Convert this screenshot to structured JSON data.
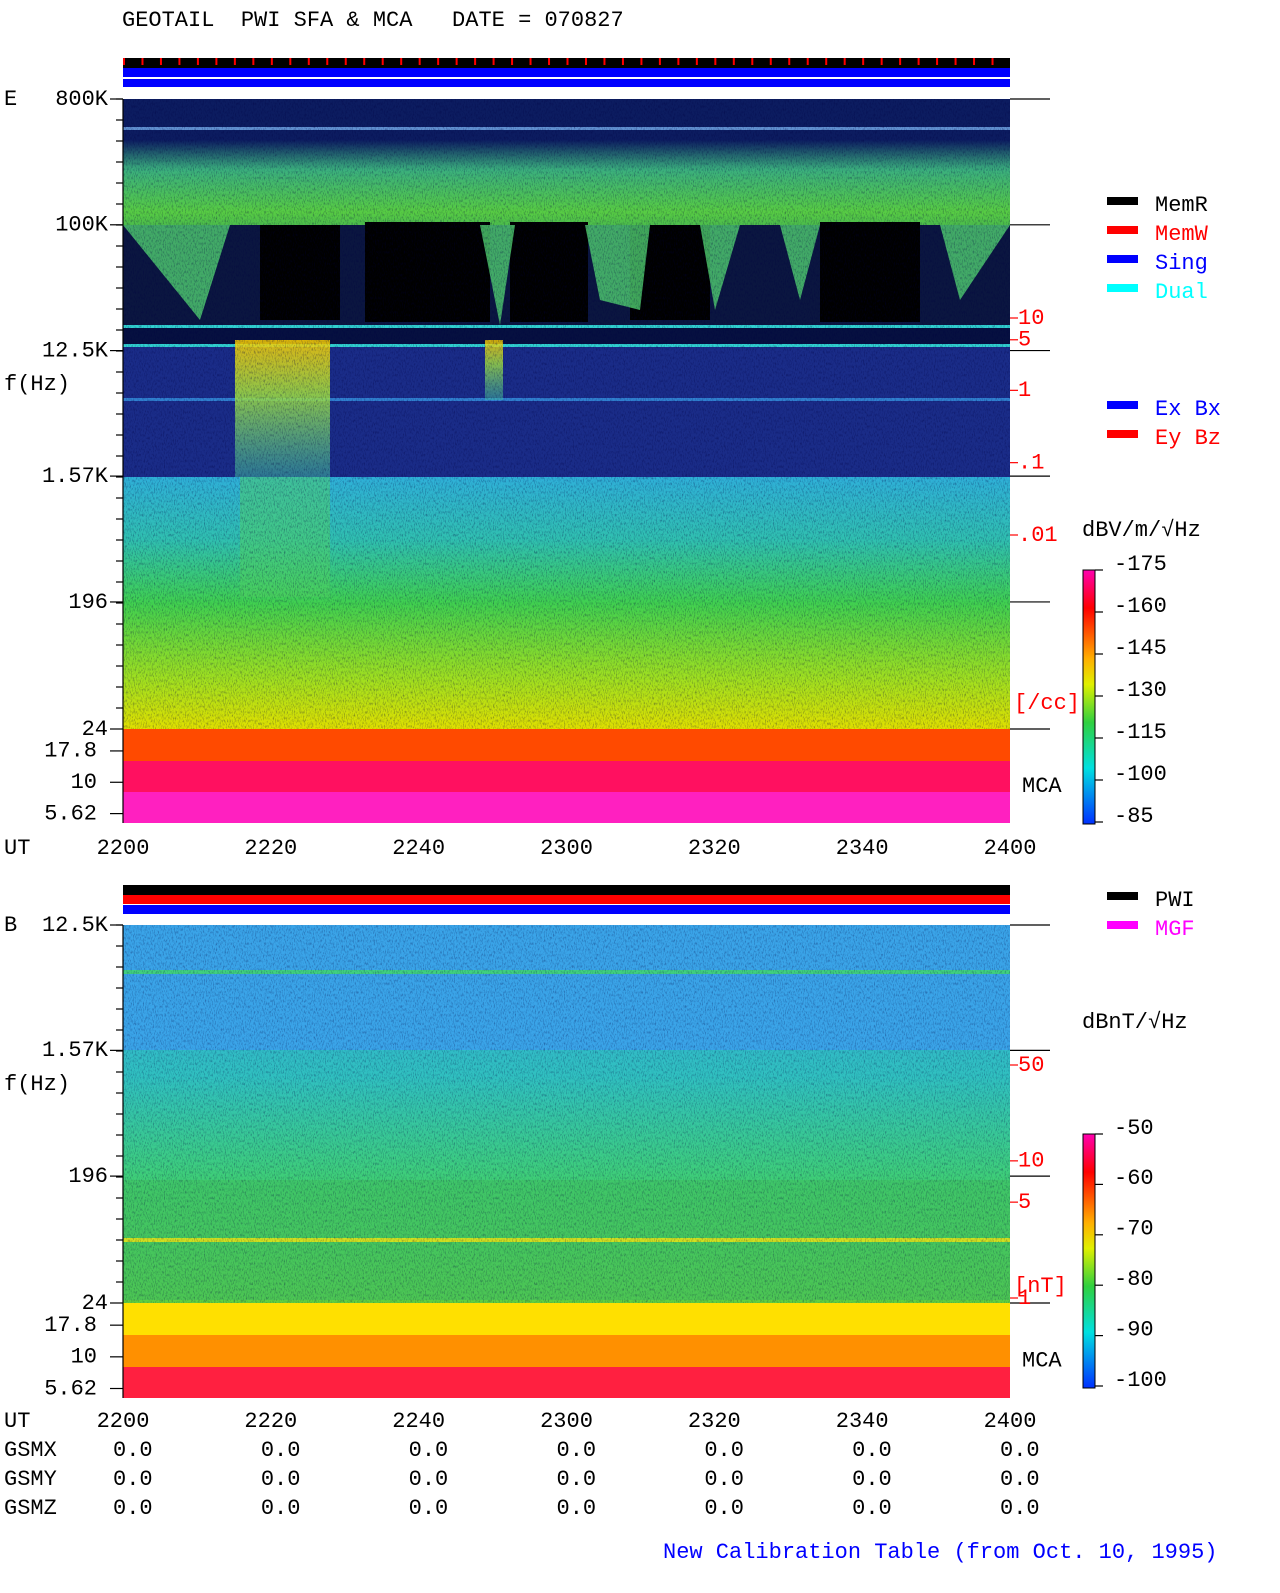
{
  "header": {
    "title": "GEOTAIL  PWI SFA & MCA   DATE = 070827"
  },
  "chart_data": [
    {
      "type": "spectrogram",
      "panel_label": "E",
      "y_label": "f(Hz)",
      "x_label": "UT",
      "log_y": true,
      "ylim": [
        24,
        800000
      ],
      "yticks": [
        {
          "value": 800000,
          "label": "800K"
        },
        {
          "value": 100000,
          "label": "100K"
        },
        {
          "value": 12500,
          "label": "12.5K"
        },
        {
          "value": 1570,
          "label": "1.57K"
        },
        196,
        24
      ],
      "mca_label": "MCA",
      "mca_ticks": [
        17.8,
        10,
        5.62
      ],
      "categories": [
        "2200",
        "2220",
        "2240",
        "2300",
        "2320",
        "2340",
        "2400"
      ],
      "colorbar": {
        "label": "dBV/m/√Hz",
        "lim": [
          -175,
          -85
        ],
        "ticks": [
          -85,
          -100,
          -115,
          -130,
          -145,
          -160,
          -175
        ]
      },
      "density_axis": {
        "label": "[/cc]",
        "log": true,
        "lim": [
          0.01,
          10
        ],
        "ticks": [
          10,
          5,
          1,
          {
            "value": 0.1,
            "label": ".1"
          },
          {
            "value": 0.01,
            "label": ".01"
          }
        ]
      },
      "status_colors": [
        "#000000",
        "#0000ff",
        "#0000ff"
      ],
      "legends": [
        {
          "series": [
            {
              "name": "MemR",
              "color": "#000000"
            },
            {
              "name": "MemW",
              "color": "#ff0000"
            },
            {
              "name": "Sing",
              "color": "#0000ff"
            },
            {
              "name": "Dual",
              "color": "#00ffff"
            }
          ]
        },
        {
          "series": [
            {
              "name": "Ex Bx",
              "color": "#0000ff"
            },
            {
              "name": "Ey Bz",
              "color": "#ff0000"
            }
          ]
        }
      ]
    },
    {
      "type": "spectrogram",
      "panel_label": "B",
      "y_label": "f(Hz)",
      "x_label": "UT",
      "log_y": true,
      "ylim": [
        24,
        12500
      ],
      "yticks": [
        {
          "value": 12500,
          "label": "12.5K"
        },
        {
          "value": 1570,
          "label": "1.57K"
        },
        196,
        24
      ],
      "mca_label": "MCA",
      "mca_ticks": [
        17.8,
        10,
        5.62
      ],
      "categories": [
        "2200",
        "2220",
        "2240",
        "2300",
        "2320",
        "2340",
        "2400"
      ],
      "colorbar": {
        "label": "dBnT/√Hz",
        "lim": [
          -100,
          -50
        ],
        "ticks": [
          -50,
          -60,
          -70,
          -80,
          -90,
          -100
        ]
      },
      "density_axis": {
        "label": "[nT]",
        "log": true,
        "lim": [
          1,
          50
        ],
        "ticks": [
          50,
          10,
          5,
          1
        ]
      },
      "status_colors": [
        "#000000",
        "#ff0000",
        "#0000ff"
      ],
      "legends": [
        {
          "series": [
            {
              "name": "PWI",
              "color": "#000000"
            },
            {
              "name": "MGF",
              "color": "#ff00ff"
            }
          ]
        }
      ]
    }
  ],
  "position_table": {
    "row_labels": [
      "GSMX",
      "GSMY",
      "GSMZ"
    ],
    "rows": [
      [
        "0.0",
        "0.0",
        "0.0",
        "0.0",
        "0.0",
        "0.0",
        "0.0"
      ],
      [
        "0.0",
        "0.0",
        "0.0",
        "0.0",
        "0.0",
        "0.0",
        "0.0"
      ],
      [
        "0.0",
        "0.0",
        "0.0",
        "0.0",
        "0.0",
        "0.0",
        "0.0"
      ]
    ]
  },
  "footer": "New Calibration Table (from Oct. 10, 1995)"
}
